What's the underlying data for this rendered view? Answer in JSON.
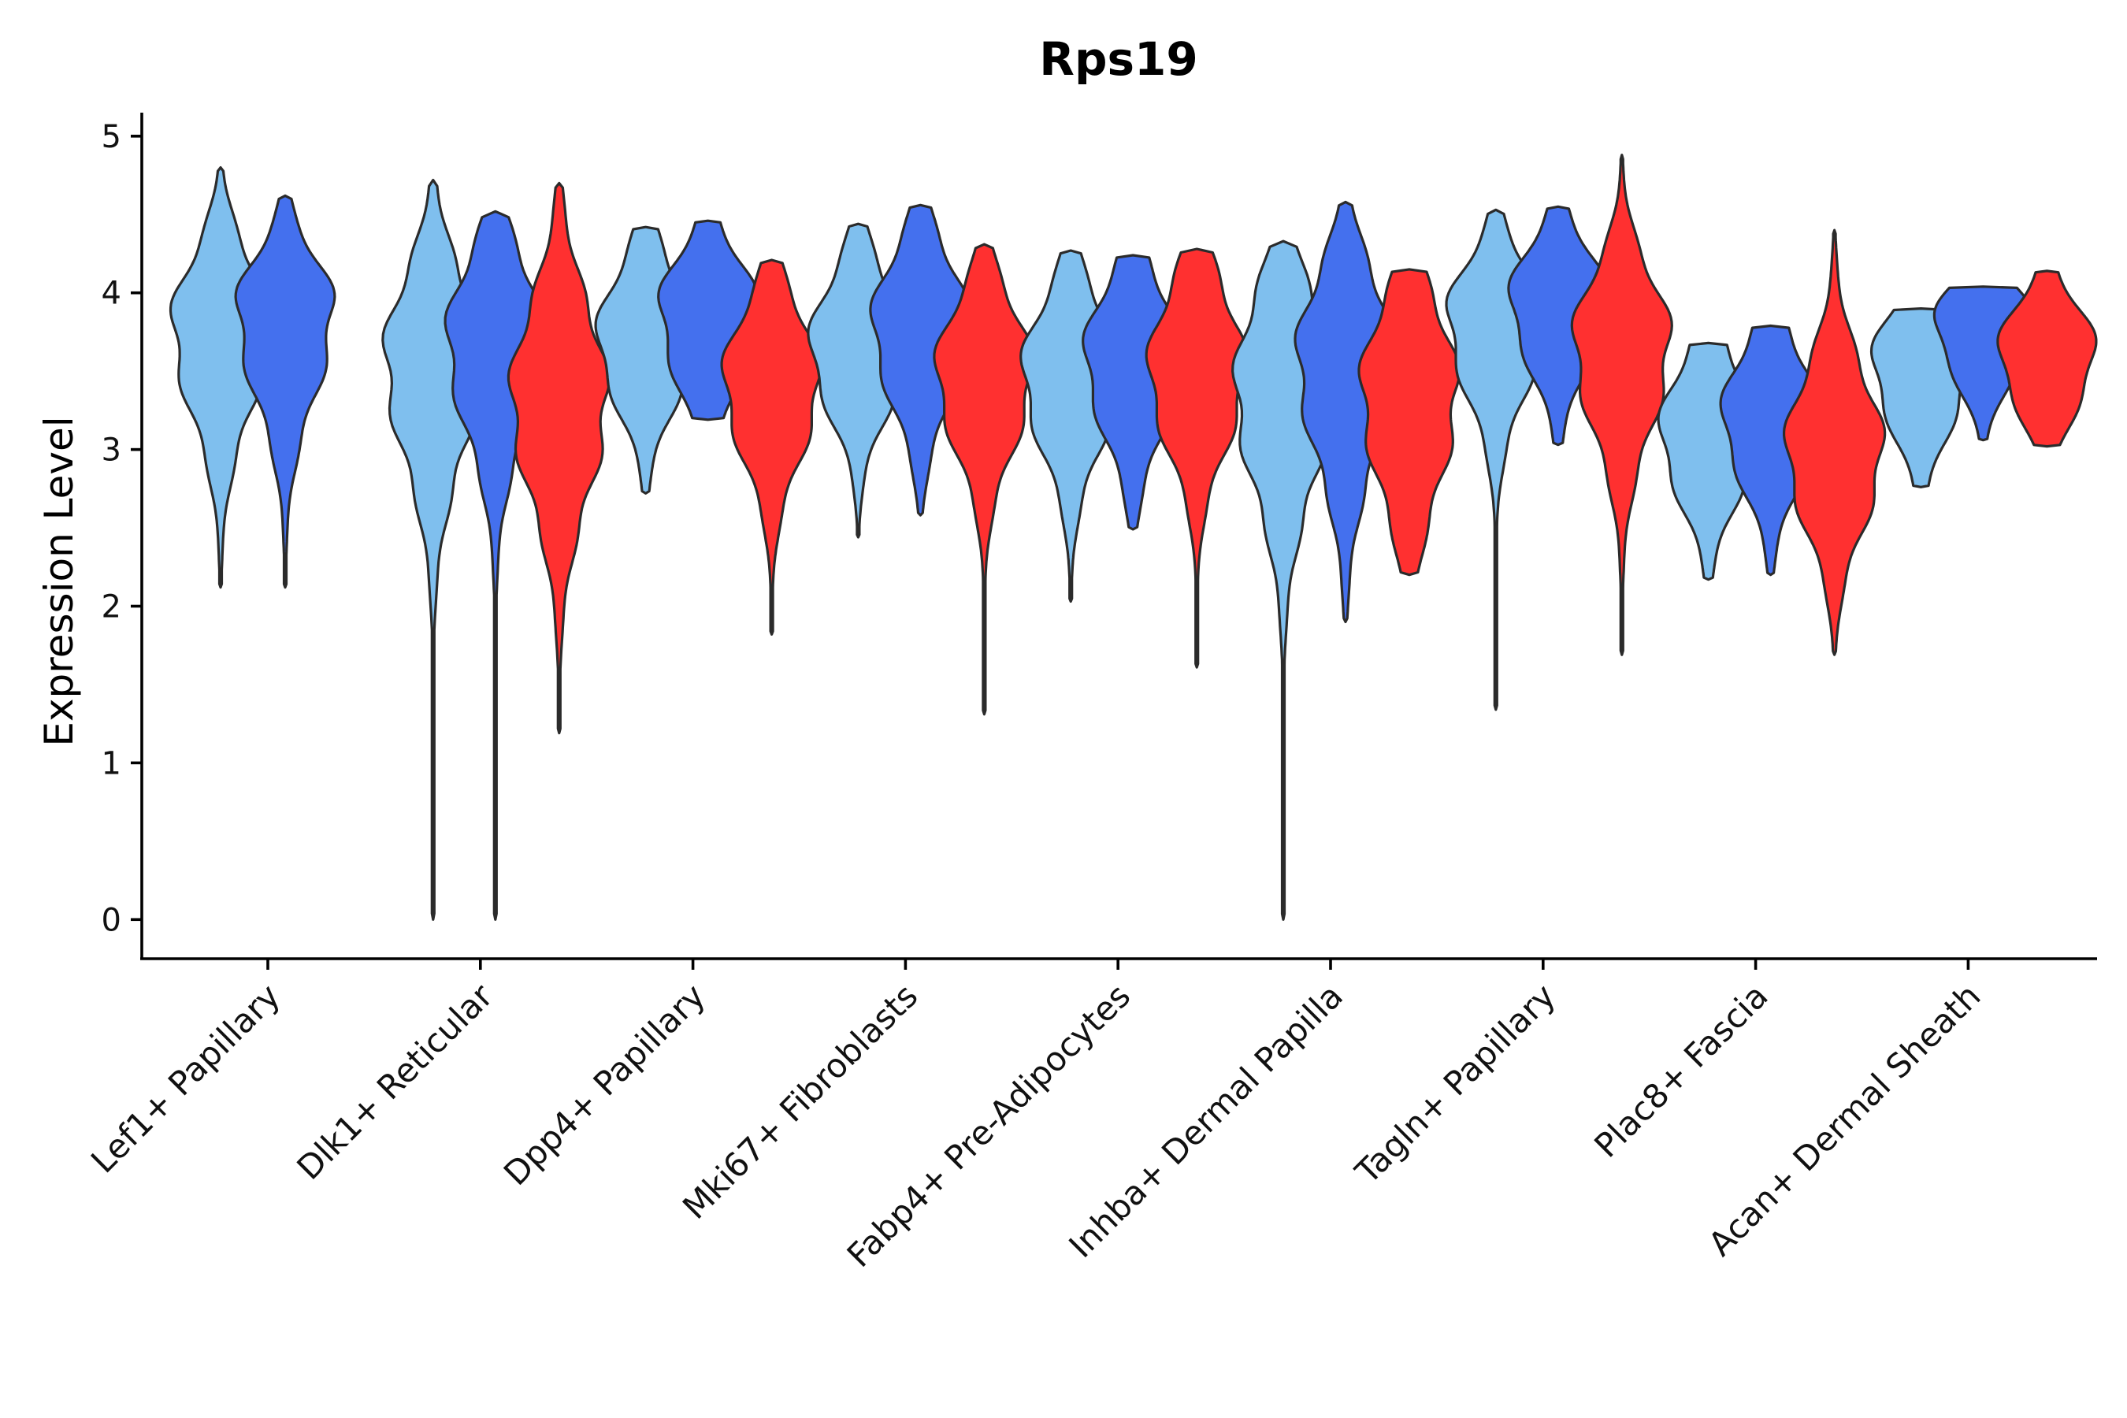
{
  "chart_data": {
    "type": "violin",
    "title": "Rps19",
    "xlabel": "",
    "ylabel": "Expression Level",
    "ylim": [
      -0.25,
      5.15
    ],
    "yticks": [
      "0",
      "1",
      "2",
      "3",
      "4",
      "5"
    ],
    "grid": false,
    "legend": "none",
    "colors": {
      "light_blue": "#7fbfee",
      "blue": "#4470ee",
      "red": "#ff3030",
      "outline": "#2b2b2b"
    },
    "categories": [
      "Lef1+ Papillary",
      "Dlk1+ Reticular",
      "Dpp4+ Papillary",
      "Mki67+ Fibroblasts",
      "Fabp4+ Pre-Adipocytes",
      "Inhba+ Dermal Papilla",
      "Tagln+ Papillary",
      "Plac8+ Fascia",
      "Acan+ Dermal Sheath"
    ],
    "groups": [
      {
        "category": "Lef1+ Papillary",
        "violins": [
          {
            "color": "light_blue",
            "min": 2.12,
            "max": 4.8,
            "q1": 3.45,
            "median": 3.8,
            "q3": 4.05
          },
          {
            "color": "blue",
            "min": 2.12,
            "max": 4.62,
            "q1": 3.55,
            "median": 3.9,
            "q3": 4.1
          }
        ]
      },
      {
        "category": "Dlk1+ Reticular",
        "violins": [
          {
            "color": "light_blue",
            "min": 0.0,
            "max": 4.72,
            "q1": 3.2,
            "median": 3.6,
            "q3": 3.9
          },
          {
            "color": "blue",
            "min": 0.0,
            "max": 4.52,
            "q1": 3.35,
            "median": 3.72,
            "q3": 4.0
          },
          {
            "color": "red",
            "min": 1.19,
            "max": 4.7,
            "q1": 2.95,
            "median": 3.35,
            "q3": 3.7
          }
        ]
      },
      {
        "category": "Dpp4+ Papillary",
        "violins": [
          {
            "color": "light_blue",
            "min": 2.72,
            "max": 4.42,
            "q1": 3.45,
            "median": 3.7,
            "q3": 3.95
          },
          {
            "color": "blue",
            "min": 3.19,
            "max": 4.46,
            "q1": 3.6,
            "median": 3.9,
            "q3": 4.1
          },
          {
            "color": "red",
            "min": 1.82,
            "max": 4.21,
            "q1": 3.15,
            "median": 3.45,
            "q3": 3.7
          }
        ]
      },
      {
        "category": "Mki67+ Fibroblasts",
        "violins": [
          {
            "color": "light_blue",
            "min": 2.44,
            "max": 4.44,
            "q1": 3.4,
            "median": 3.65,
            "q3": 3.9
          },
          {
            "color": "blue",
            "min": 2.58,
            "max": 4.56,
            "q1": 3.5,
            "median": 3.8,
            "q3": 4.05
          },
          {
            "color": "red",
            "min": 1.31,
            "max": 4.31,
            "q1": 3.2,
            "median": 3.5,
            "q3": 3.75
          }
        ]
      },
      {
        "category": "Fabp4+ Pre-Adipocytes",
        "violins": [
          {
            "color": "light_blue",
            "min": 2.03,
            "max": 4.27,
            "q1": 3.2,
            "median": 3.5,
            "q3": 3.75
          },
          {
            "color": "blue",
            "min": 2.49,
            "max": 4.24,
            "q1": 3.3,
            "median": 3.6,
            "q3": 3.85
          },
          {
            "color": "red",
            "min": 1.61,
            "max": 4.28,
            "q1": 3.2,
            "median": 3.5,
            "q3": 3.8
          }
        ]
      },
      {
        "category": "Inhba+ Dermal Papilla",
        "violins": [
          {
            "color": "light_blue",
            "min": 0.0,
            "max": 4.33,
            "q1": 3.0,
            "median": 3.4,
            "q3": 3.75
          },
          {
            "color": "blue",
            "min": 1.9,
            "max": 4.58,
            "q1": 3.2,
            "median": 3.6,
            "q3": 3.9
          },
          {
            "color": "red",
            "min": 2.2,
            "max": 4.15,
            "q1": 3.0,
            "median": 3.4,
            "q3": 3.7
          }
        ]
      },
      {
        "category": "Tagln+ Papillary",
        "violins": [
          {
            "color": "light_blue",
            "min": 1.34,
            "max": 4.53,
            "q1": 3.55,
            "median": 3.85,
            "q3": 4.05
          },
          {
            "color": "blue",
            "min": 3.03,
            "max": 4.55,
            "q1": 3.7,
            "median": 3.95,
            "q3": 4.15
          },
          {
            "color": "red",
            "min": 1.69,
            "max": 4.88,
            "q1": 3.35,
            "median": 3.7,
            "q3": 3.95
          }
        ]
      },
      {
        "category": "Plac8+ Fascia",
        "violins": [
          {
            "color": "light_blue",
            "min": 2.17,
            "max": 3.68,
            "q1": 2.85,
            "median": 3.1,
            "q3": 3.35
          },
          {
            "color": "blue",
            "min": 2.2,
            "max": 3.79,
            "q1": 2.95,
            "median": 3.2,
            "q3": 3.45
          },
          {
            "color": "red",
            "min": 1.69,
            "max": 4.4,
            "q1": 2.7,
            "median": 3.0,
            "q3": 3.3
          }
        ]
      },
      {
        "category": "Acan+ Dermal Sheath",
        "violins": [
          {
            "color": "light_blue",
            "min": 2.76,
            "max": 3.9,
            "q1": 3.3,
            "median": 3.55,
            "q3": 3.75
          },
          {
            "color": "blue",
            "min": 3.06,
            "max": 4.04,
            "q1": 3.6,
            "median": 3.8,
            "q3": 3.95
          },
          {
            "color": "red",
            "min": 3.02,
            "max": 4.14,
            "q1": 3.4,
            "median": 3.62,
            "q3": 3.8
          }
        ]
      }
    ]
  }
}
